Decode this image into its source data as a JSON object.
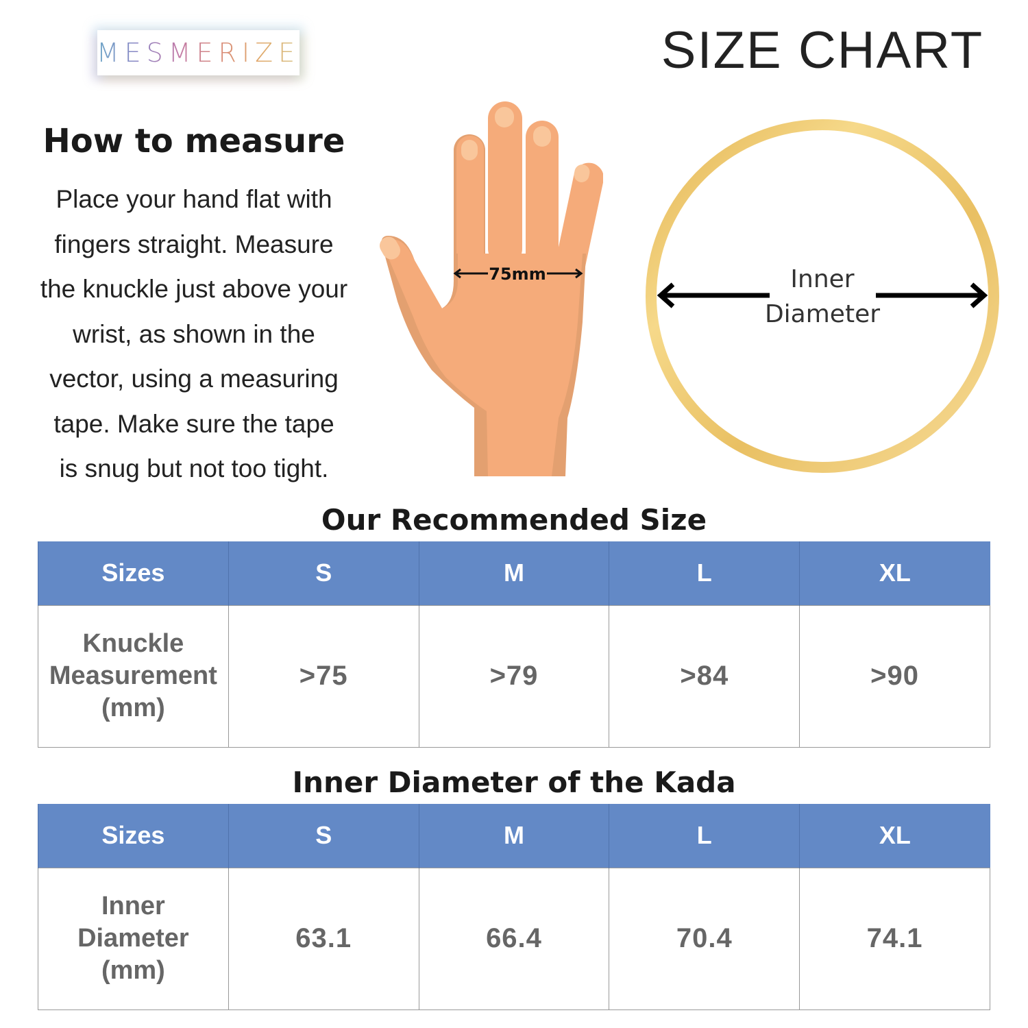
{
  "brand": "MESMERIZE",
  "title": "SIZE CHART",
  "how_to": {
    "heading": "How to measure",
    "lines": [
      "Place your hand flat with",
      "fingers straight. Measure",
      "the knuckle just above your",
      "wrist, as shown in the",
      "vector, using a measuring",
      "tape. Make sure the tape",
      "is snug but not too tight."
    ]
  },
  "hand_label": "75mm",
  "ring_label": [
    "Inner",
    "Diameter"
  ],
  "colors": {
    "header": "#6389c6",
    "ring": "#e9c063",
    "skin": "#f5ab7a"
  },
  "table1": {
    "title": "Our Recommended Size",
    "headers": [
      "Sizes",
      "S",
      "M",
      "L",
      "XL"
    ],
    "row_label": [
      "Knuckle",
      "Measurement",
      "(mm)"
    ],
    "values": [
      ">75",
      ">79",
      ">84",
      ">90"
    ]
  },
  "table2": {
    "title": "Inner Diameter of the Kada",
    "headers": [
      "Sizes",
      "S",
      "M",
      "L",
      "XL"
    ],
    "row_label": [
      "Inner",
      "Diameter",
      "(mm)"
    ],
    "values": [
      "63.1",
      "66.4",
      "70.4",
      "74.1"
    ]
  }
}
